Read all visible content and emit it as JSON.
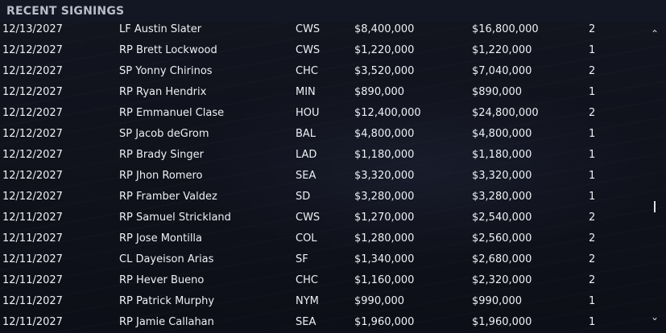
{
  "panel": {
    "title": "RECENT SIGNINGS"
  },
  "signings": [
    {
      "date": "12/13/2027",
      "player": "LF Austin Slater",
      "team": "CWS",
      "salary": "$8,400,000",
      "total": "$16,800,000",
      "years": "2"
    },
    {
      "date": "12/12/2027",
      "player": "RP Brett Lockwood",
      "team": "CWS",
      "salary": "$1,220,000",
      "total": "$1,220,000",
      "years": "1"
    },
    {
      "date": "12/12/2027",
      "player": "SP Yonny Chirinos",
      "team": "CHC",
      "salary": "$3,520,000",
      "total": "$7,040,000",
      "years": "2"
    },
    {
      "date": "12/12/2027",
      "player": "RP Ryan Hendrix",
      "team": "MIN",
      "salary": "$890,000",
      "total": "$890,000",
      "years": "1"
    },
    {
      "date": "12/12/2027",
      "player": "RP Emmanuel Clase",
      "team": "HOU",
      "salary": "$12,400,000",
      "total": "$24,800,000",
      "years": "2"
    },
    {
      "date": "12/12/2027",
      "player": "SP Jacob deGrom",
      "team": "BAL",
      "salary": "$4,800,000",
      "total": "$4,800,000",
      "years": "1"
    },
    {
      "date": "12/12/2027",
      "player": "RP Brady Singer",
      "team": "LAD",
      "salary": "$1,180,000",
      "total": "$1,180,000",
      "years": "1"
    },
    {
      "date": "12/12/2027",
      "player": "RP Jhon Romero",
      "team": "SEA",
      "salary": "$3,320,000",
      "total": "$3,320,000",
      "years": "1"
    },
    {
      "date": "12/12/2027",
      "player": "RP Framber Valdez",
      "team": "SD",
      "salary": "$3,280,000",
      "total": "$3,280,000",
      "years": "1"
    },
    {
      "date": "12/11/2027",
      "player": "RP Samuel Strickland",
      "team": "CWS",
      "salary": "$1,270,000",
      "total": "$2,540,000",
      "years": "2"
    },
    {
      "date": "12/11/2027",
      "player": "RP Jose Montilla",
      "team": "COL",
      "salary": "$1,280,000",
      "total": "$2,560,000",
      "years": "2"
    },
    {
      "date": "12/11/2027",
      "player": "CL Dayeison Arias",
      "team": "SF",
      "salary": "$1,340,000",
      "total": "$2,680,000",
      "years": "2"
    },
    {
      "date": "12/11/2027",
      "player": "RP Hever Bueno",
      "team": "CHC",
      "salary": "$1,160,000",
      "total": "$2,320,000",
      "years": "2"
    },
    {
      "date": "12/11/2027",
      "player": "RP Patrick Murphy",
      "team": "NYM",
      "salary": "$990,000",
      "total": "$990,000",
      "years": "1"
    },
    {
      "date": "12/11/2027",
      "player": "RP Jamie Callahan",
      "team": "SEA",
      "salary": "$1,960,000",
      "total": "$1,960,000",
      "years": "1"
    }
  ],
  "scrollbar": {
    "up_glyph": "⌃",
    "down_glyph": "⌄",
    "position_fraction": 0.6
  },
  "colors": {
    "background": "#0e1019",
    "header": "#131623",
    "title_text": "#b9bdc8",
    "row_text": "#eef0f5"
  }
}
